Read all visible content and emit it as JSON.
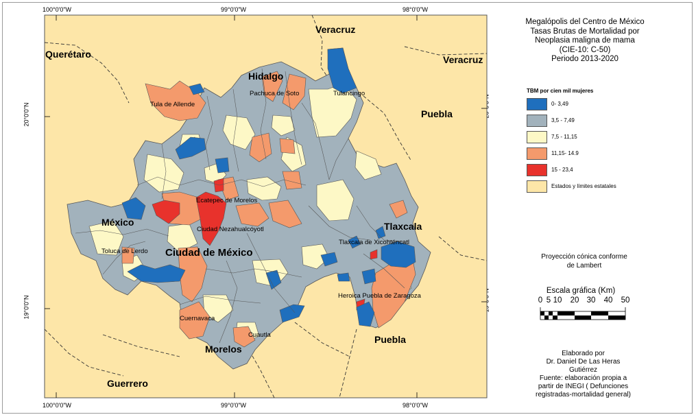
{
  "title_lines": [
    "Megalópolis del Centro de México",
    "Tasas Brutas de Mortalidad por",
    "Neoplasia maligna de mama",
    "(CIE-10: C-50)",
    "Periodo 2013-2020"
  ],
  "coords": {
    "top_left": "100°0'0\"W",
    "top_mid": "99°0'0\"W",
    "top_right": "98°0'0\"W",
    "bottom_left": "100°0'0\"W",
    "bottom_mid": "99°0'0\"W",
    "bottom_right": "98°0'0\"W",
    "left_upper": "20°0'0\"N",
    "left_lower": "19°0'0\"N",
    "right_upper": "20°0'0\"N",
    "right_lower": "19°0'0\"N"
  },
  "states": {
    "veracruz_top": "Veracruz",
    "veracruz_right": "Veracruz",
    "queretaro": "Querétaro",
    "hidalgo": "Hidalgo",
    "puebla_north": "Puebla",
    "mexico": "México",
    "tlaxcala": "Tlaxcala",
    "cdmx": "Ciudad de México",
    "puebla_south": "Puebla",
    "morelos": "Morelos",
    "guerrero": "Guerrero"
  },
  "cities": {
    "pachuca": "Pachuca de Soto",
    "tulancingo": "Tulancingo",
    "tula": "Tula de Allende",
    "ecatepec": "Ecatepec de Morelos",
    "neza": "Ciudad Nezahualcóyotl",
    "toluca": "Toluca de Lerdo",
    "tlaxcala": "Tlaxcala de Xicohténcatl",
    "puebla": "Heroica Puebla de Zaragoza",
    "cuernavaca": "Cuernavaca",
    "cuautla": "Cuautla"
  },
  "legend": {
    "title": "TBM por cien mil mujeres",
    "items": [
      {
        "label": "0- 3,49",
        "color": "#1f6fbd"
      },
      {
        "label": "3,5 - 7,49",
        "color": "#a2b2bc"
      },
      {
        "label": "7,5 - 11,15",
        "color": "#fdf8c6"
      },
      {
        "label": "11,15- 14.9",
        "color": "#f49a6c"
      },
      {
        "label": "15 - 23,4",
        "color": "#e8322c"
      },
      {
        "label": "Estados y límites estatales",
        "color": "#fde6a8"
      }
    ]
  },
  "projection": [
    "Proyección cónica conforme",
    "de Lambert"
  ],
  "scale": {
    "title": "Escala gráfica (Km)",
    "ticks": [
      "0",
      "5",
      "10",
      "20",
      "30",
      "40",
      "50"
    ]
  },
  "credits": [
    "Elaborado por",
    "Dr. Daniel De Las Heras",
    "Gutiérrez",
    "Fuente: elaboración propia a",
    "partir de INEGI ( Defunciones",
    "registradas-mortalidad general)"
  ],
  "colors": {
    "background": "#fde6a8",
    "border": "#5a5a5a"
  }
}
